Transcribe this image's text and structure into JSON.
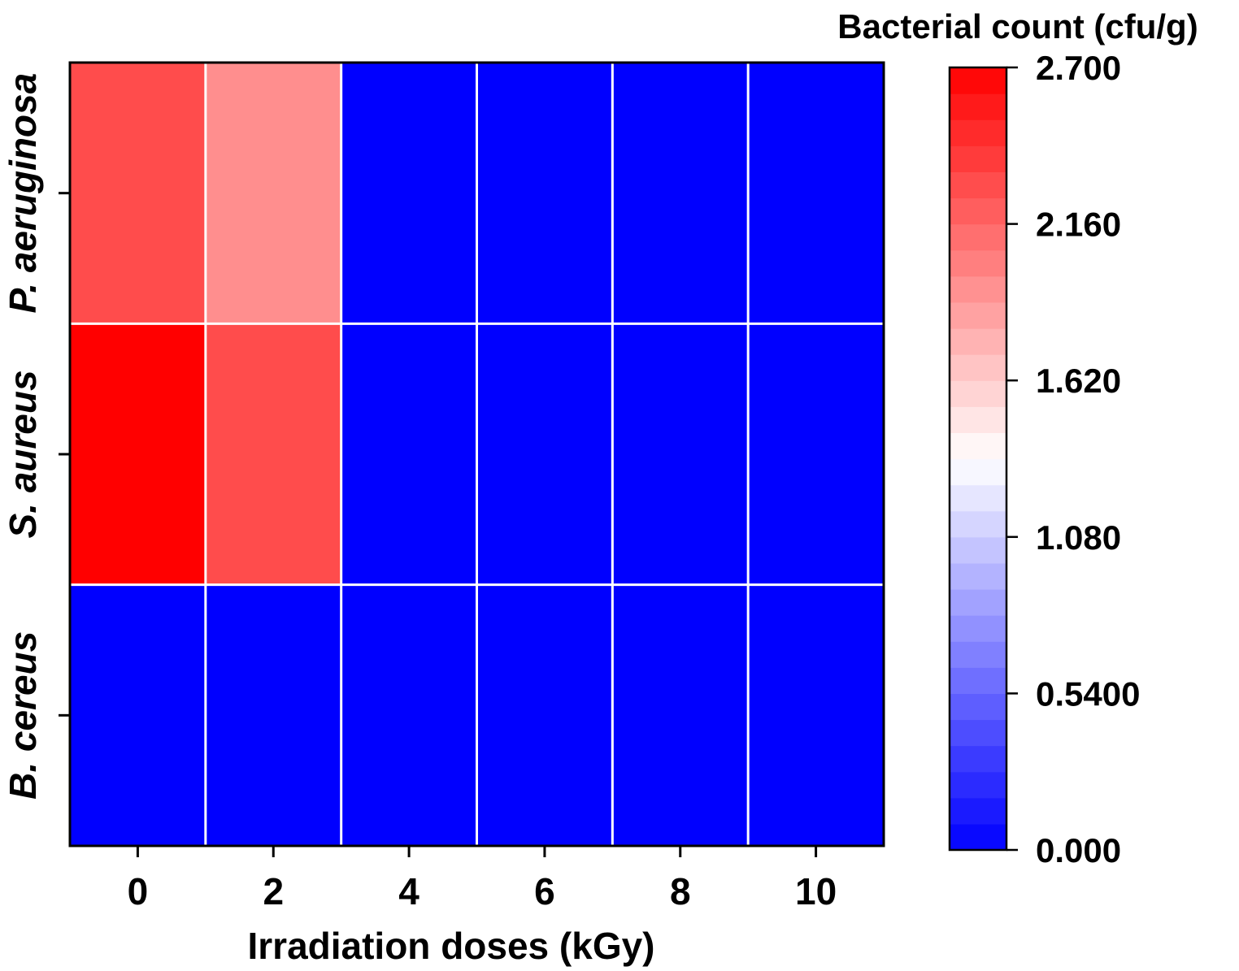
{
  "chart_data": {
    "type": "heatmap",
    "xlabel": "Irradiation doses (kGy)",
    "x_categories": [
      "0",
      "2",
      "4",
      "6",
      "8",
      "10"
    ],
    "y_categories": [
      "P. aeruginosa",
      "S. aureus",
      "B. cereus"
    ],
    "values": [
      [
        2.3,
        1.95,
        0,
        0,
        0,
        0
      ],
      [
        2.7,
        2.3,
        0,
        0,
        0,
        0
      ],
      [
        0,
        0,
        0,
        0,
        0,
        0
      ]
    ],
    "colorbar": {
      "title": "Bacterial count (cfu/g)",
      "min": 0,
      "max": 2.7,
      "ticks": [
        "0.000",
        "0.5400",
        "1.080",
        "1.620",
        "2.160",
        "2.700"
      ],
      "tick_values": [
        0,
        0.54,
        1.08,
        1.62,
        2.16,
        2.7
      ],
      "colors": {
        "low": "#0000ff",
        "mid": "#ffffff",
        "high": "#ff0000"
      },
      "steps": 30
    },
    "grid_color": "#ffffff"
  }
}
